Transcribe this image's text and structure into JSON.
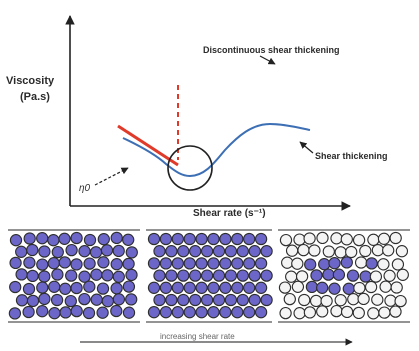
{
  "plot": {
    "y_axis_label_line1": "Viscosity",
    "y_axis_label_line2": "(Pa.s)",
    "x_axis_label": "Shear rate (s⁻¹)",
    "zero_shear_label": "η0"
  },
  "annotations": {
    "discontinuous": "Discontinuous shear thickening",
    "continuous": "Shear thickening"
  },
  "panels": {
    "bottom_label": "increasing shear rate"
  },
  "colors": {
    "curve": "#3d6fb5",
    "dst_line": "#e03a2a",
    "particle_fill": "#6b66c8",
    "particle_outline": "#2e2e2e",
    "open_particle_fill": "#f4f4f4"
  }
}
